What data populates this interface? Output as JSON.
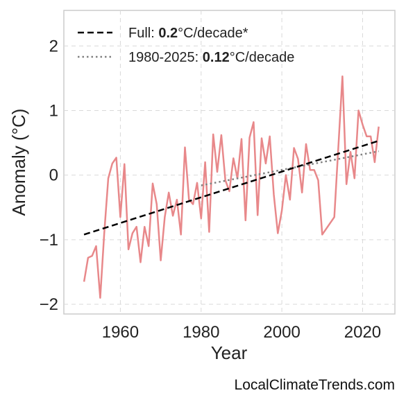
{
  "chart_data": {
    "type": "line",
    "xlabel": "Year",
    "ylabel": "Anomaly (°C)",
    "xlim": [
      1946,
      2028
    ],
    "ylim": [
      -2.15,
      2.55
    ],
    "x_ticks": [
      1960,
      1980,
      2000,
      2020
    ],
    "y_ticks": [
      2,
      1,
      0,
      -1,
      -2
    ],
    "y_tick_labels": [
      "2",
      "1",
      "0",
      "−1",
      "−2"
    ],
    "grid": true,
    "legend_position": "top-left",
    "colors": {
      "anomaly": "#e8888a",
      "full_trend": "#000000",
      "recent_trend": "#808080",
      "grid": "#d9d9d9",
      "frame": "#cccccc"
    },
    "series": [
      {
        "x": [
          1951,
          1952,
          1953,
          1954,
          1955,
          1956,
          1957,
          1958,
          1959,
          1960,
          1961,
          1962,
          1963,
          1964,
          1965,
          1966,
          1967,
          1968,
          1969,
          1970,
          1971,
          1972,
          1973,
          1974,
          1975,
          1976,
          1977,
          1978,
          1979,
          1980,
          1981,
          1982,
          1983,
          1984,
          1985,
          1986,
          1987,
          1988,
          1989,
          1990,
          1991,
          1992,
          1993,
          1994,
          1995,
          1996,
          1997,
          1998,
          1999,
          2000,
          2001,
          2002,
          2003,
          2004,
          2005,
          2006,
          2007,
          2008,
          2009,
          2010,
          2013,
          2015,
          2016,
          2017,
          2018,
          2019,
          2020,
          2021,
          2022,
          2023,
          2024
        ],
        "y": [
          -1.65,
          -1.28,
          -1.25,
          -1.1,
          -1.9,
          -0.9,
          -0.05,
          0.18,
          0.27,
          -0.65,
          0.17,
          -1.15,
          -0.9,
          -0.8,
          -1.35,
          -0.8,
          -1.1,
          -0.13,
          -0.45,
          -1.32,
          -0.65,
          -0.27,
          -0.63,
          -0.38,
          -0.92,
          0.43,
          -0.38,
          -0.45,
          -0.12,
          -0.67,
          0.2,
          -0.88,
          0.63,
          0.05,
          0.62,
          -0.08,
          -0.25,
          0.26,
          -0.05,
          0.56,
          -0.7,
          0.58,
          0.82,
          -0.62,
          0.57,
          0.18,
          0.6,
          -0.3,
          -0.9,
          -0.55,
          0.0,
          -0.38,
          0.42,
          0.25,
          -0.27,
          0.48,
          0.08,
          0.08,
          -0.08,
          -0.92,
          -0.65,
          1.53,
          -0.14,
          0.36,
          -0.05,
          1.0,
          0.78,
          0.6,
          0.6,
          0.2,
          0.75
        ]
      },
      {
        "name": "Full",
        "x": [
          1951,
          2024
        ],
        "y": [
          -0.92,
          0.53
        ]
      },
      {
        "name": "1980-2025",
        "x": [
          1980,
          2024
        ],
        "y": [
          -0.16,
          0.37
        ]
      }
    ],
    "legend": [
      {
        "prefix": "Full: ",
        "value": "0.2",
        "suffix": "°C/decade*"
      },
      {
        "prefix": "1980-2025: ",
        "value": "0.12",
        "suffix": "°C/decade"
      }
    ]
  },
  "watermark": "LocalClimateTrends.com"
}
